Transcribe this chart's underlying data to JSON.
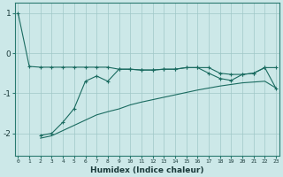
{
  "xlabel": "Humidex (Indice chaleur)",
  "ylabel": "",
  "bg_color": "#cce8e8",
  "line_color": "#1a6b60",
  "grid_color": "#a0c8c8",
  "ylim": [
    -2.55,
    1.25
  ],
  "xlim": [
    -0.3,
    23.3
  ],
  "yticks": [
    1,
    0,
    -1,
    -2
  ],
  "xticks": [
    0,
    1,
    2,
    3,
    4,
    5,
    6,
    7,
    8,
    9,
    10,
    11,
    12,
    13,
    14,
    15,
    16,
    17,
    18,
    19,
    20,
    21,
    22,
    23
  ],
  "line1_x": [
    0,
    1,
    2,
    3,
    4,
    5,
    6,
    7,
    8,
    9,
    10,
    11,
    12,
    13,
    14,
    15,
    16,
    17,
    18,
    19,
    20,
    21,
    22,
    23
  ],
  "line1_y": [
    1.0,
    -0.33,
    -0.35,
    -0.35,
    -0.35,
    -0.35,
    -0.35,
    -0.35,
    -0.35,
    -0.4,
    -0.4,
    -0.42,
    -0.42,
    -0.4,
    -0.4,
    -0.36,
    -0.36,
    -0.36,
    -0.5,
    -0.53,
    -0.53,
    -0.5,
    -0.36,
    -0.36
  ],
  "line2_x": [
    2,
    3,
    4,
    5,
    6,
    7,
    8,
    9,
    10,
    11,
    12,
    13,
    14,
    15,
    16,
    17,
    18,
    19,
    20,
    21,
    22,
    23
  ],
  "line2_y": [
    -2.05,
    -2.0,
    -1.72,
    -1.38,
    -0.7,
    -0.57,
    -0.7,
    -0.4,
    -0.4,
    -0.42,
    -0.42,
    -0.4,
    -0.4,
    -0.36,
    -0.36,
    -0.5,
    -0.63,
    -0.68,
    -0.53,
    -0.5,
    -0.36,
    -0.88
  ],
  "line3_x": [
    2,
    3,
    4,
    5,
    6,
    7,
    8,
    9,
    10,
    11,
    12,
    13,
    14,
    15,
    16,
    17,
    18,
    19,
    20,
    21,
    22,
    23
  ],
  "line3_y": [
    -2.12,
    -2.06,
    -1.93,
    -1.8,
    -1.67,
    -1.54,
    -1.46,
    -1.39,
    -1.29,
    -1.22,
    -1.16,
    -1.1,
    -1.04,
    -0.98,
    -0.92,
    -0.87,
    -0.82,
    -0.78,
    -0.74,
    -0.72,
    -0.7,
    -0.87
  ]
}
